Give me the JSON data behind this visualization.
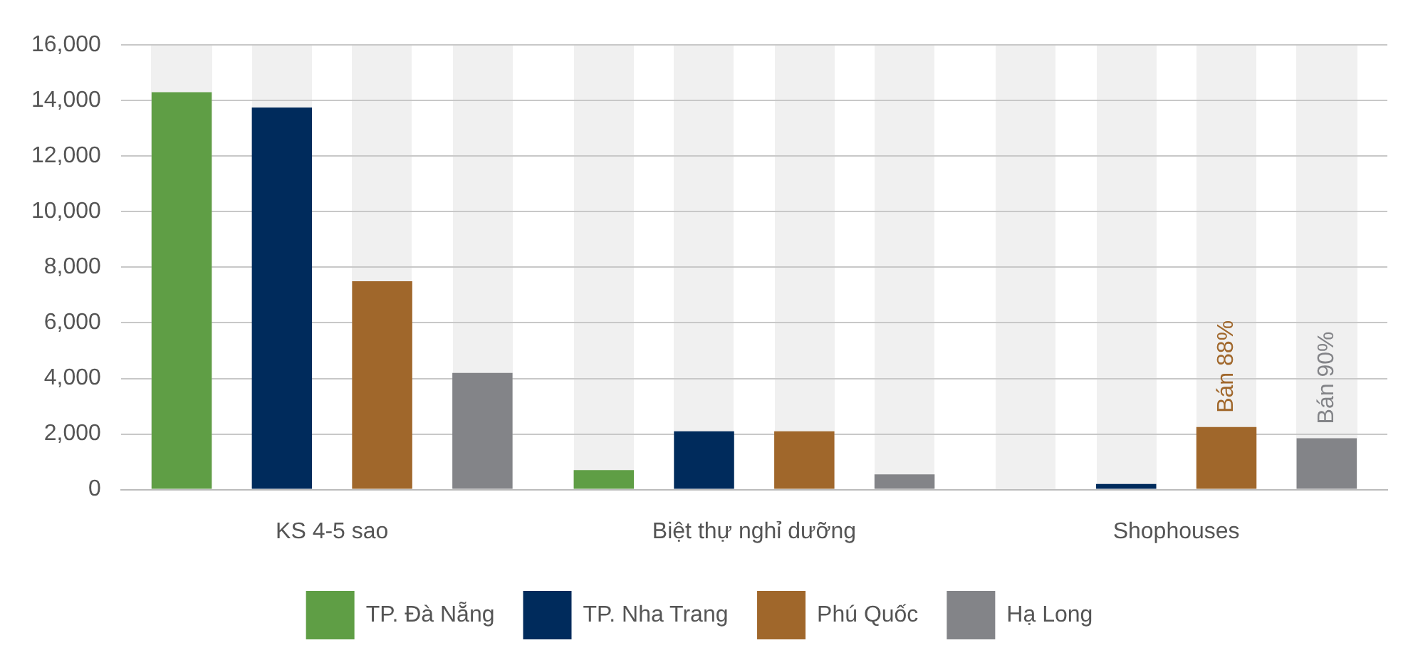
{
  "chart_data": {
    "type": "bar",
    "categories": [
      "KS 4-5 sao",
      "Biệt thự nghỉ dưỡng",
      "Shophouses"
    ],
    "series": [
      {
        "name": "TP. Đà Nẵng",
        "color": "#5f9e45",
        "values": [
          14300,
          700,
          0
        ]
      },
      {
        "name": "TP. Nha Trang",
        "color": "#002b5c",
        "values": [
          13750,
          2100,
          200
        ]
      },
      {
        "name": "Phú Quốc",
        "color": "#a0672b",
        "values": [
          7500,
          2100,
          2250
        ]
      },
      {
        "name": "Hạ Long",
        "color": "#838488",
        "values": [
          4200,
          550,
          1850
        ]
      }
    ],
    "ylim": [
      0,
      16000
    ],
    "yticks": [
      {
        "value": 0,
        "label": "0"
      },
      {
        "value": 2000,
        "label": "2,000"
      },
      {
        "value": 4000,
        "label": "4,000"
      },
      {
        "value": 6000,
        "label": "6,000"
      },
      {
        "value": 8000,
        "label": "8,000"
      },
      {
        "value": 10000,
        "label": "10,000"
      },
      {
        "value": 12000,
        "label": "12,000"
      },
      {
        "value": 14000,
        "label": "14,000"
      },
      {
        "value": 16000,
        "label": "16,000"
      }
    ],
    "grid": "y",
    "legend": "bottom",
    "annotations": [
      "Bán 88%",
      "Bán 90%"
    ]
  }
}
